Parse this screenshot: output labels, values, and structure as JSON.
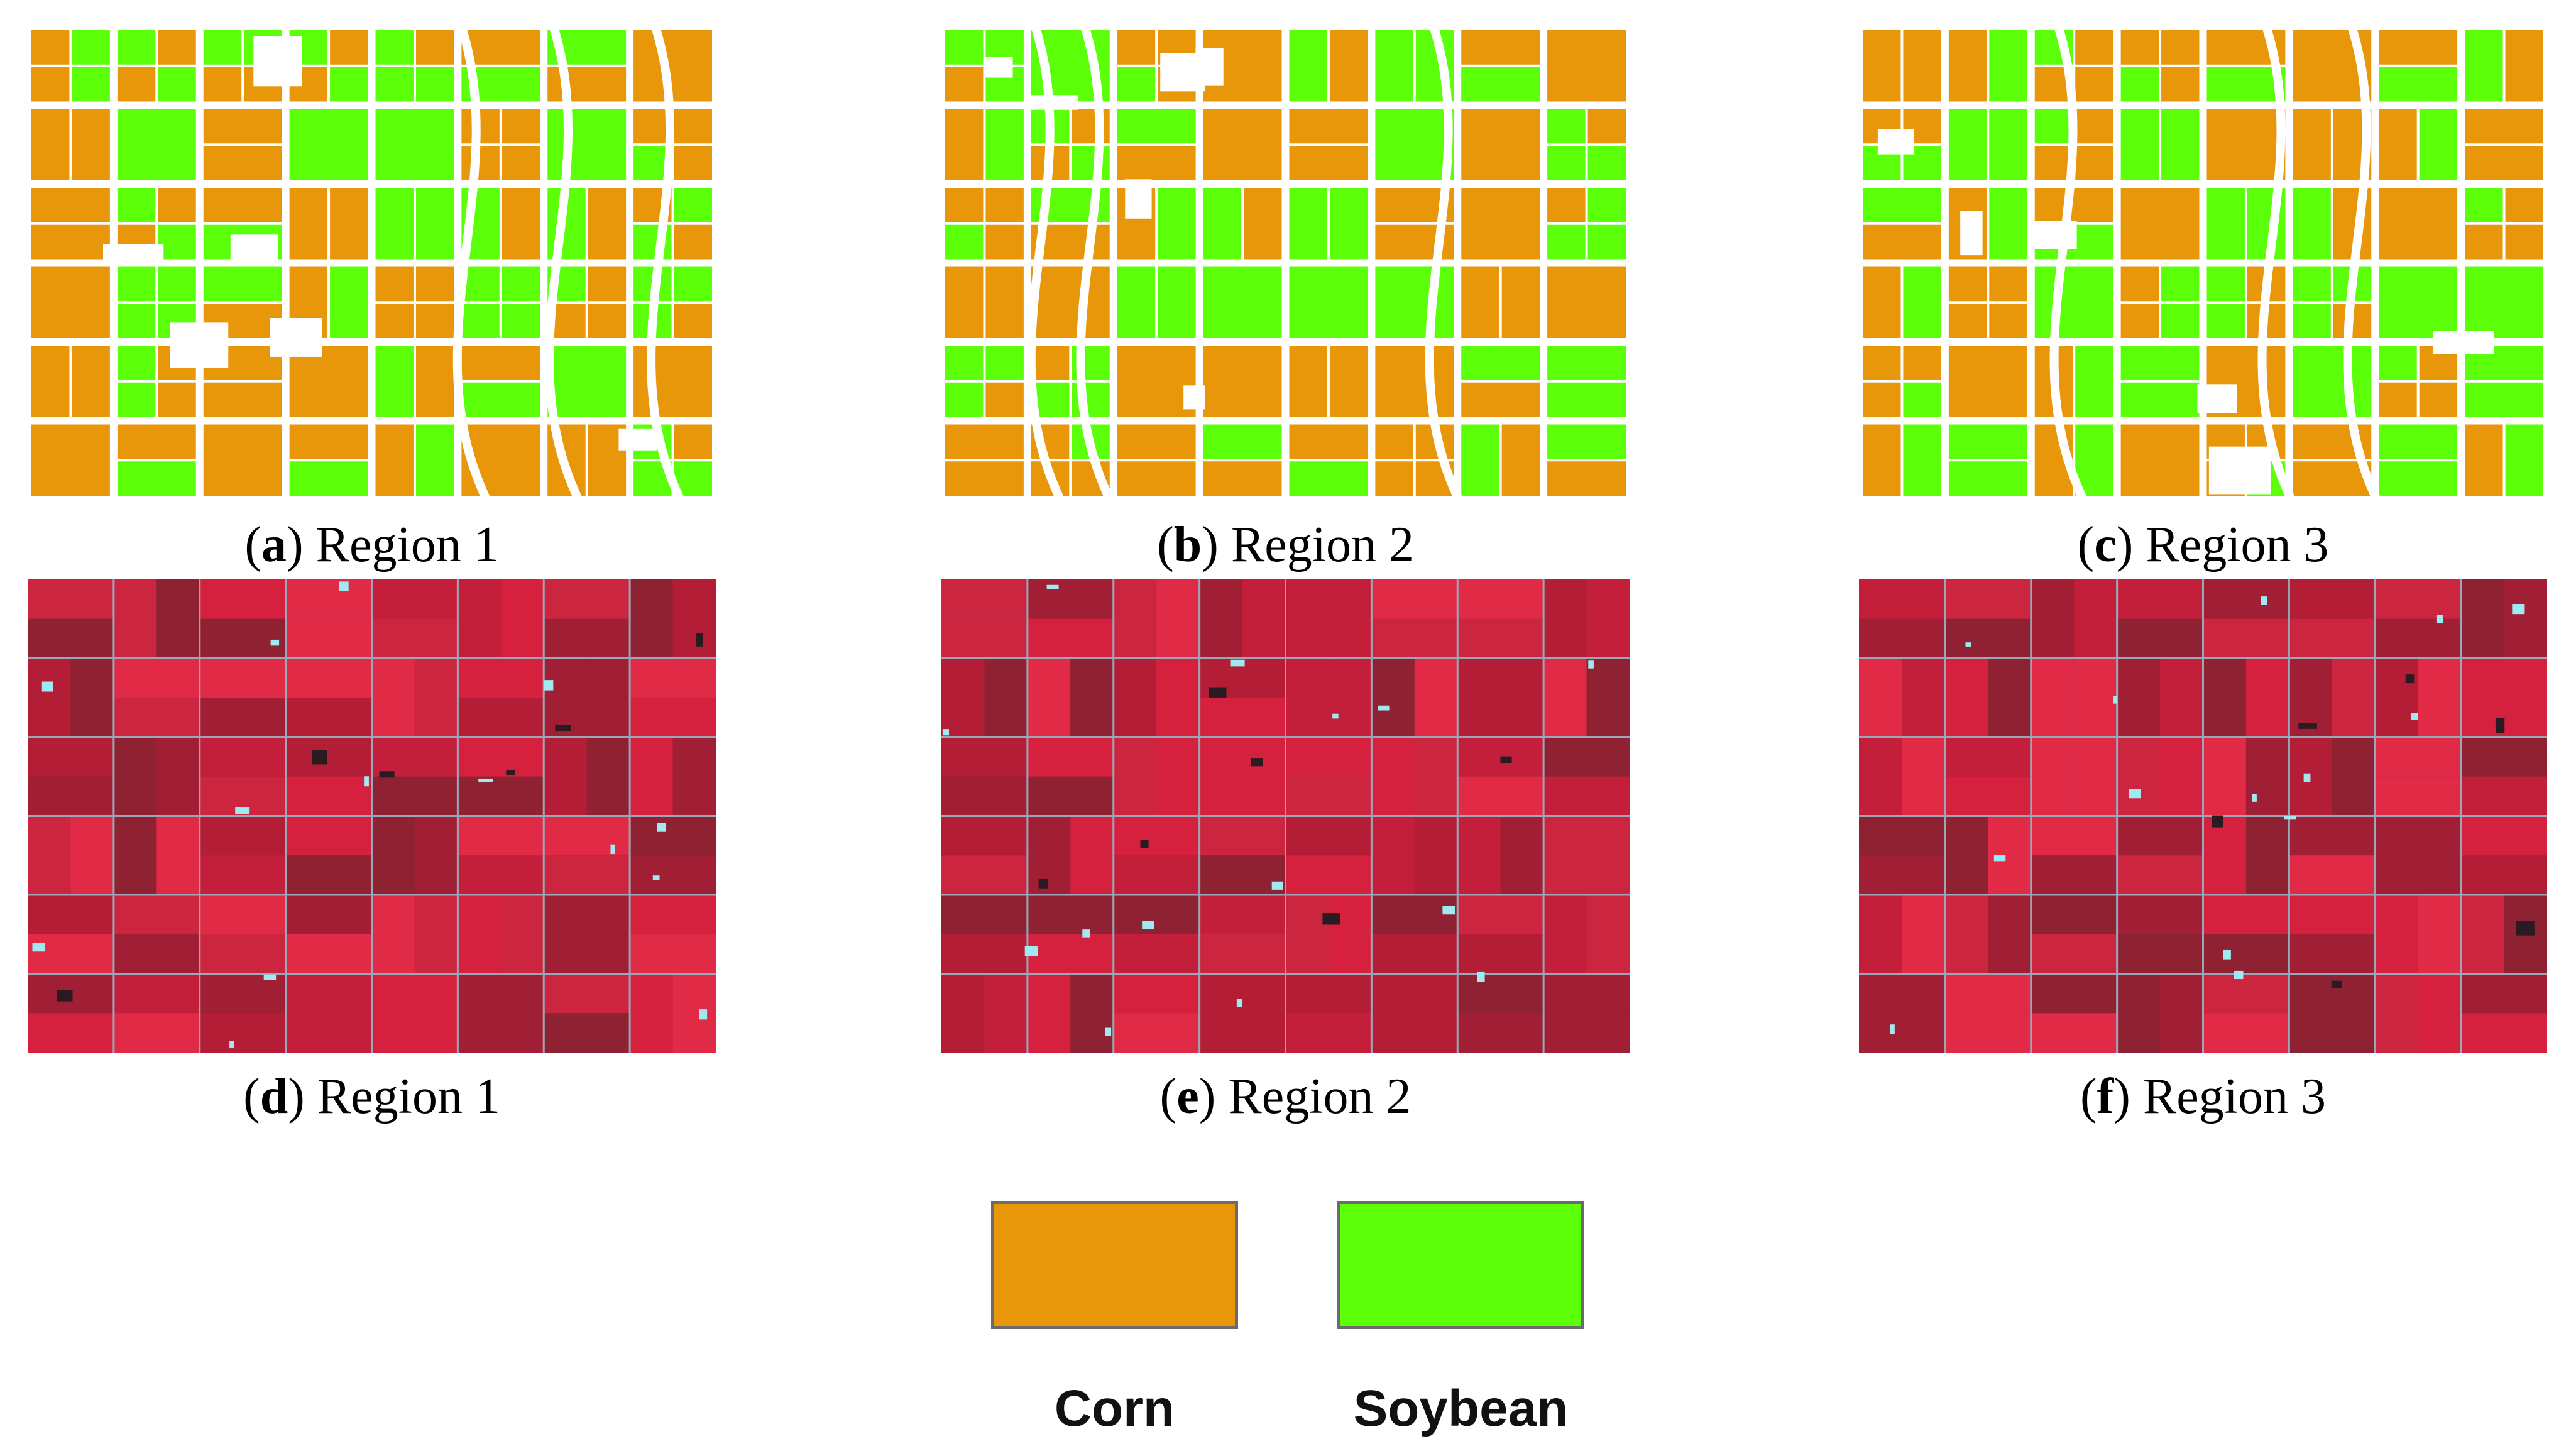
{
  "panels": [
    {
      "letter": "a",
      "label": "Region 1"
    },
    {
      "letter": "b",
      "label": "Region 2"
    },
    {
      "letter": "c",
      "label": "Region 3"
    },
    {
      "letter": "d",
      "label": "Region 1"
    },
    {
      "letter": "e",
      "label": "Region 2"
    },
    {
      "letter": "f",
      "label": "Region 3"
    }
  ],
  "legend": {
    "corn": {
      "label": "Corn",
      "color": "#E8960A"
    },
    "soybean": {
      "label": "Soybean",
      "color": "#5CFF0A"
    }
  },
  "colors": {
    "road": "#ffffff",
    "nir_red": "#D5203E",
    "nir_dark": "#A01F35",
    "water": "#9FEAF0"
  }
}
